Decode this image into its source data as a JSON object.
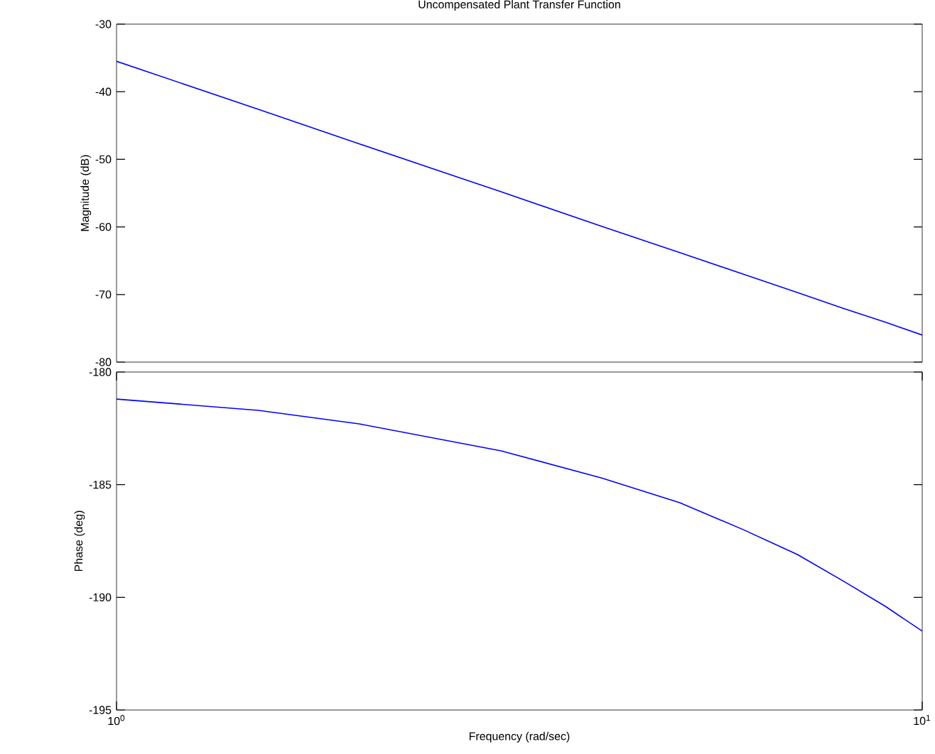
{
  "chart_data": [
    {
      "type": "line",
      "title": "Uncompensated Plant Transfer Function",
      "ylabel": "Magnitude (dB)",
      "log": "x",
      "xlim": [
        1,
        10
      ],
      "ylim": [
        -80,
        -30
      ],
      "yticks": [
        -80,
        -70,
        -60,
        -50,
        -40,
        -30
      ],
      "tick_labels": "y",
      "grid": false,
      "x": [
        1,
        1.5,
        2,
        3,
        4,
        5,
        6,
        7,
        8,
        9,
        10
      ],
      "series": [
        {
          "color": "#0000ff",
          "values": [
            -35.5,
            -42.6,
            -47.7,
            -54.8,
            -59.9,
            -63.8,
            -67.0,
            -69.7,
            -72.1,
            -74.1,
            -76.0
          ]
        }
      ]
    },
    {
      "type": "line",
      "xlabel": "Frequency  (rad/sec)",
      "ylabel": "Phase (deg)",
      "log": "x",
      "xlim": [
        1,
        10
      ],
      "xticks": [
        {
          "value": 1,
          "label": "10$^{0}$"
        },
        {
          "value": 10,
          "label": "10$^{1}$"
        }
      ],
      "ylim": [
        -195,
        -180
      ],
      "yticks": [
        -195,
        -190,
        -185,
        -180
      ],
      "grid": false,
      "x": [
        1,
        1.5,
        2,
        3,
        4,
        5,
        6,
        7,
        8,
        9,
        10
      ],
      "series": [
        {
          "color": "#0000ff",
          "values": [
            -181.2,
            -181.7,
            -182.3,
            -183.5,
            -184.7,
            -185.8,
            -187.0,
            -188.1,
            -189.3,
            -190.4,
            -191.5
          ]
        }
      ]
    }
  ]
}
